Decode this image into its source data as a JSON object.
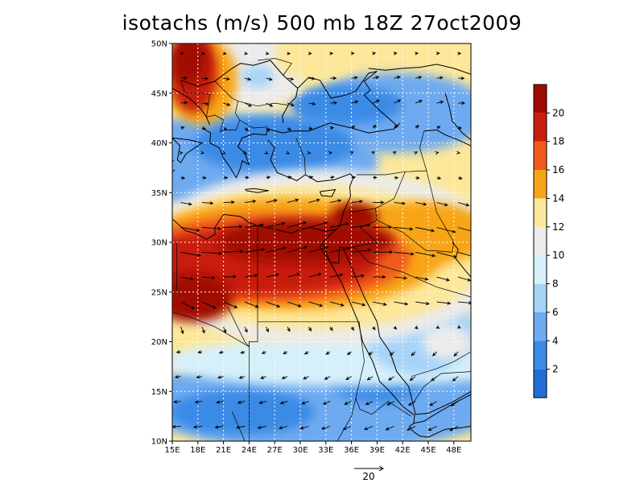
{
  "title": "isotachs (m/s) 500 mb 18Z 27oct2009",
  "map": {
    "lon_range": [
      15,
      50
    ],
    "lat_range": [
      10,
      50
    ],
    "lon_ticks": [
      {
        "value": 15,
        "label": "15E"
      },
      {
        "value": 18,
        "label": "18E"
      },
      {
        "value": 21,
        "label": "21E"
      },
      {
        "value": 24,
        "label": "24E"
      },
      {
        "value": 27,
        "label": "27E"
      },
      {
        "value": 30,
        "label": "30E"
      },
      {
        "value": 33,
        "label": "33E"
      },
      {
        "value": 36,
        "label": "36E"
      },
      {
        "value": 39,
        "label": "39E"
      },
      {
        "value": 42,
        "label": "42E"
      },
      {
        "value": 45,
        "label": "45E"
      },
      {
        "value": 48,
        "label": "48E"
      }
    ],
    "lat_ticks": [
      {
        "value": 10,
        "label": "10N"
      },
      {
        "value": 15,
        "label": "15N"
      },
      {
        "value": 20,
        "label": "20N"
      },
      {
        "value": 25,
        "label": "25N"
      },
      {
        "value": 30,
        "label": "30N"
      },
      {
        "value": 35,
        "label": "35N"
      },
      {
        "value": 40,
        "label": "40N"
      },
      {
        "value": 45,
        "label": "45N"
      },
      {
        "value": 50,
        "label": "50N"
      }
    ],
    "grid": true
  },
  "colorbar": {
    "levels": [
      2,
      4,
      6,
      8,
      10,
      12,
      14,
      16,
      18,
      20
    ],
    "labels": [
      "2",
      "4",
      "6",
      "8",
      "10",
      "12",
      "14",
      "16",
      "18",
      "20"
    ],
    "colors": [
      "#1e6ed6",
      "#3a8ae6",
      "#6eaaf0",
      "#a6d3f8",
      "#d6f0fa",
      "#ebebeb",
      "#fce79a",
      "#f7a518",
      "#f05a1a",
      "#c81e0f",
      "#a00a05"
    ]
  },
  "vector_reference": {
    "label": "20",
    "magnitude": 20
  }
}
